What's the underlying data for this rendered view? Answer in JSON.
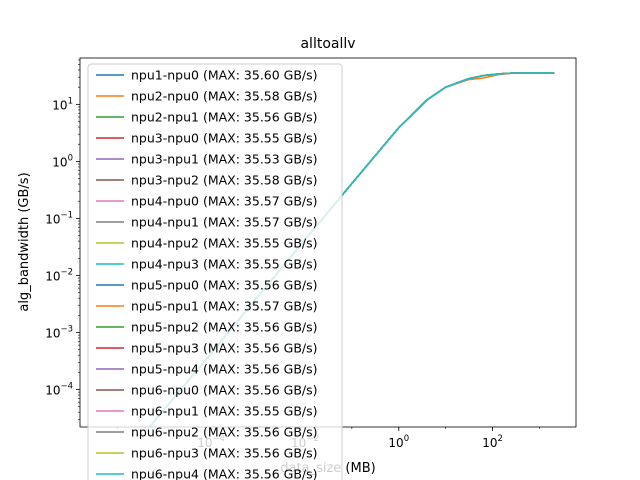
{
  "chart_data": {
    "type": "line",
    "title": "alltoallv",
    "xlabel": "data_size (MB)",
    "ylabel": "alg_bandwidth (GB/s)",
    "xscale": "log",
    "yscale": "log",
    "xlim": [
      1.6e-07,
      6000
    ],
    "ylim": [
      2.2e-05,
      65
    ],
    "x_ticks": [
      {
        "value": 0.0001,
        "base": "10",
        "exp": "−4"
      },
      {
        "value": 0.01,
        "base": "10",
        "exp": "−2"
      },
      {
        "value": 1,
        "base": "10",
        "exp": "0"
      },
      {
        "value": 100,
        "base": "10",
        "exp": "2"
      }
    ],
    "y_ticks": [
      {
        "value": 0.0001,
        "base": "10",
        "exp": "−4"
      },
      {
        "value": 0.001,
        "base": "10",
        "exp": "−3"
      },
      {
        "value": 0.01,
        "base": "10",
        "exp": "−2"
      },
      {
        "value": 0.1,
        "base": "10",
        "exp": "−1"
      },
      {
        "value": 1,
        "base": "10",
        "exp": "0"
      },
      {
        "value": 10,
        "base": "10",
        "exp": "1"
      }
    ],
    "grid": false,
    "legend_position": "upper-left",
    "x": [
      1e-06,
      1e-05,
      0.0001,
      0.001,
      0.01,
      0.1,
      1,
      4,
      10,
      30,
      64,
      128,
      256,
      512,
      1024,
      2048
    ],
    "series": [
      {
        "name": "npu1-npu0 (MAX: 35.60 GB/s)",
        "color": "#1f77b4",
        "values": [
          4.5e-06,
          4.5e-05,
          0.00043,
          0.0043,
          0.042,
          0.41,
          3.9,
          12,
          20,
          28,
          32,
          34,
          35.3,
          35.6,
          35.5,
          35.4
        ]
      },
      {
        "name": "npu2-npu0 (MAX: 35.58 GB/s)",
        "color": "#ff7f0e",
        "values": [
          4.5e-06,
          4.5e-05,
          0.00043,
          0.0043,
          0.042,
          0.41,
          3.9,
          12,
          20,
          27,
          29,
          33,
          35.2,
          35.58,
          35.5,
          35.4
        ]
      },
      {
        "name": "npu2-npu1 (MAX: 35.56 GB/s)",
        "color": "#2ca02c",
        "values": [
          4.5e-06,
          4.5e-05,
          0.00043,
          0.0043,
          0.042,
          0.41,
          3.9,
          12,
          20,
          28,
          32,
          34,
          35.3,
          35.56,
          35.5,
          35.4
        ]
      },
      {
        "name": "npu3-npu0 (MAX: 35.55 GB/s)",
        "color": "#d62728",
        "values": [
          4.5e-06,
          4.5e-05,
          0.00043,
          0.0043,
          0.042,
          0.41,
          3.9,
          12,
          20,
          28,
          32,
          34,
          35.3,
          35.55,
          35.5,
          35.4
        ]
      },
      {
        "name": "npu3-npu1 (MAX: 35.53 GB/s)",
        "color": "#9467bd",
        "values": [
          4.5e-06,
          4.5e-05,
          0.00043,
          0.0043,
          0.042,
          0.41,
          3.9,
          12,
          20,
          28,
          32,
          34,
          35.3,
          35.53,
          35.5,
          35.4
        ]
      },
      {
        "name": "npu3-npu2 (MAX: 35.58 GB/s)",
        "color": "#8c564b",
        "values": [
          4.5e-06,
          4.5e-05,
          0.00043,
          0.0043,
          0.042,
          0.41,
          3.9,
          12,
          20,
          28,
          32,
          34,
          35.3,
          35.58,
          35.5,
          35.4
        ]
      },
      {
        "name": "npu4-npu0 (MAX: 35.57 GB/s)",
        "color": "#e377c2",
        "values": [
          4.5e-06,
          4.5e-05,
          0.00043,
          0.0043,
          0.042,
          0.41,
          3.9,
          12,
          20,
          28,
          32,
          34,
          35.3,
          35.57,
          35.5,
          35.4
        ]
      },
      {
        "name": "npu4-npu1 (MAX: 35.57 GB/s)",
        "color": "#7f7f7f",
        "values": [
          4.5e-06,
          4.5e-05,
          0.00043,
          0.0043,
          0.042,
          0.41,
          3.9,
          12,
          20,
          28,
          32,
          34,
          35.3,
          35.57,
          35.5,
          35.4
        ]
      },
      {
        "name": "npu4-npu2 (MAX: 35.55 GB/s)",
        "color": "#bcbd22",
        "values": [
          4.5e-06,
          4.5e-05,
          0.00043,
          0.0043,
          0.042,
          0.41,
          3.9,
          12,
          20,
          28,
          32,
          34,
          35.3,
          35.55,
          35.5,
          35.4
        ]
      },
      {
        "name": "npu4-npu3 (MAX: 35.55 GB/s)",
        "color": "#17becf",
        "values": [
          4.5e-06,
          4.5e-05,
          0.00043,
          0.0043,
          0.042,
          0.41,
          3.9,
          12,
          20,
          28,
          32,
          34,
          35.3,
          35.55,
          35.5,
          35.4
        ]
      },
      {
        "name": "npu5-npu0 (MAX: 35.56 GB/s)",
        "color": "#1f77b4",
        "values": [
          4.5e-06,
          4.5e-05,
          0.00043,
          0.0043,
          0.042,
          0.41,
          3.9,
          12,
          20,
          28,
          32,
          34,
          35.3,
          35.56,
          35.5,
          35.4
        ]
      },
      {
        "name": "npu5-npu1 (MAX: 35.57 GB/s)",
        "color": "#ff7f0e",
        "values": [
          4.5e-06,
          4.5e-05,
          0.00043,
          0.0043,
          0.042,
          0.41,
          3.9,
          12,
          20,
          28,
          32,
          34,
          35.3,
          35.57,
          35.5,
          35.4
        ]
      },
      {
        "name": "npu5-npu2 (MAX: 35.56 GB/s)",
        "color": "#2ca02c",
        "values": [
          4.5e-06,
          4.5e-05,
          0.00043,
          0.0043,
          0.042,
          0.41,
          3.9,
          12,
          20,
          28,
          32,
          34,
          35.3,
          35.56,
          35.5,
          35.4
        ]
      },
      {
        "name": "npu5-npu3 (MAX: 35.56 GB/s)",
        "color": "#d62728",
        "values": [
          4.5e-06,
          4.5e-05,
          0.00043,
          0.0043,
          0.042,
          0.41,
          3.9,
          12,
          20,
          28,
          32,
          34,
          35.3,
          35.56,
          35.5,
          35.4
        ]
      },
      {
        "name": "npu5-npu4 (MAX: 35.56 GB/s)",
        "color": "#9467bd",
        "values": [
          4.5e-06,
          4.5e-05,
          0.00043,
          0.0043,
          0.042,
          0.41,
          3.9,
          12,
          20,
          28,
          32,
          34,
          35.3,
          35.56,
          35.5,
          35.4
        ]
      },
      {
        "name": "npu6-npu0 (MAX: 35.56 GB/s)",
        "color": "#8c564b",
        "values": [
          4.5e-06,
          4.5e-05,
          0.00043,
          0.0043,
          0.042,
          0.41,
          3.9,
          12,
          20,
          28,
          32,
          34,
          35.3,
          35.56,
          35.5,
          35.4
        ]
      },
      {
        "name": "npu6-npu1 (MAX: 35.55 GB/s)",
        "color": "#e377c2",
        "values": [
          4.5e-06,
          4.5e-05,
          0.00043,
          0.0043,
          0.042,
          0.41,
          3.9,
          12,
          20,
          28,
          32,
          34,
          35.3,
          35.55,
          35.5,
          35.4
        ]
      },
      {
        "name": "npu6-npu2 (MAX: 35.56 GB/s)",
        "color": "#7f7f7f",
        "values": [
          4.5e-06,
          4.5e-05,
          0.00043,
          0.0043,
          0.042,
          0.41,
          3.9,
          12,
          20,
          28,
          32,
          34,
          35.3,
          35.56,
          35.5,
          35.4
        ]
      },
      {
        "name": "npu6-npu3 (MAX: 35.56 GB/s)",
        "color": "#bcbd22",
        "values": [
          4.5e-06,
          4.5e-05,
          0.00043,
          0.0043,
          0.042,
          0.41,
          3.9,
          12,
          20,
          28,
          32,
          34,
          35.3,
          35.56,
          35.5,
          35.4
        ]
      },
      {
        "name": "npu6-npu4 (MAX: 35.56 GB/s)",
        "color": "#17becf",
        "values": [
          4.5e-06,
          4.5e-05,
          0.00043,
          0.0043,
          0.042,
          0.41,
          3.9,
          12,
          20,
          28,
          32,
          34,
          35.3,
          35.56,
          35.5,
          35.4
        ]
      }
    ]
  }
}
